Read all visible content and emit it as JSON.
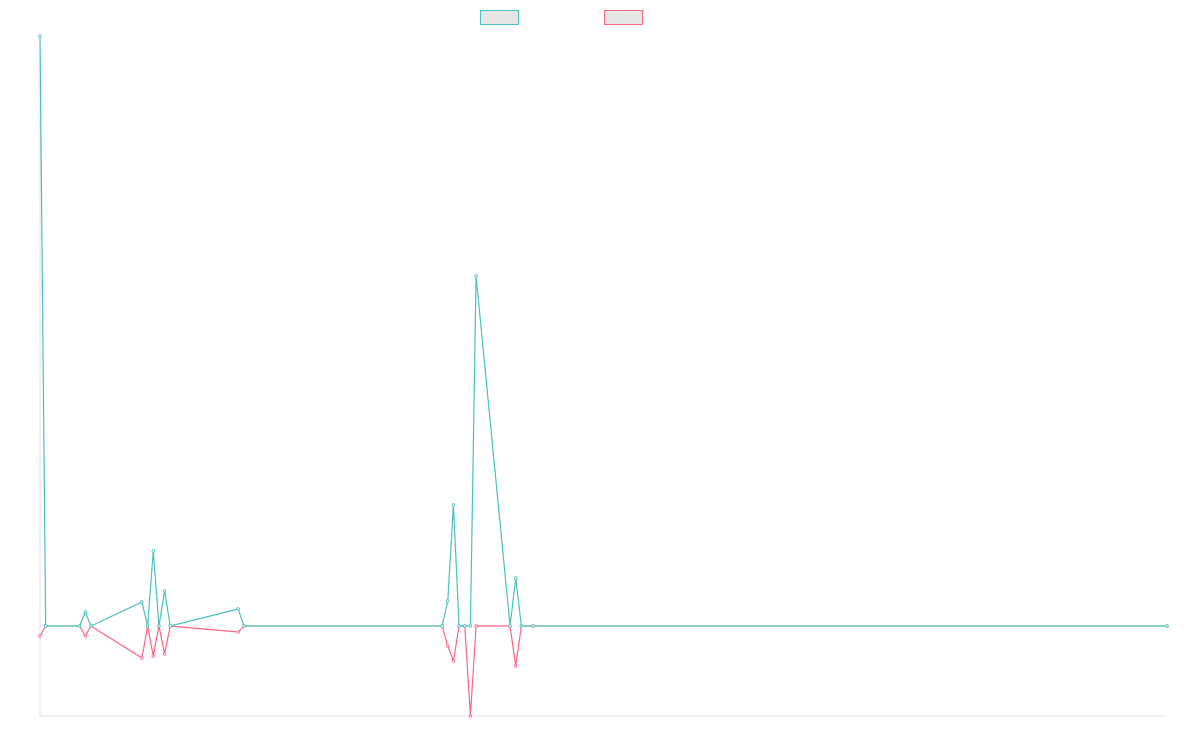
{
  "chart_data": {
    "type": "line",
    "title": "",
    "xlabel": "",
    "ylabel": "",
    "grid": false,
    "legend_position": "top-center",
    "x": [
      0,
      1,
      7,
      8,
      9,
      18,
      19,
      20,
      21,
      22,
      23,
      35,
      36,
      71,
      72,
      73,
      74,
      75,
      76,
      77,
      83,
      84,
      85,
      87,
      199
    ],
    "ylim": [
      -90,
      590
    ],
    "series": [
      {
        "name": "",
        "color": "#4bc0c0",
        "values": [
          590,
          0,
          0,
          14,
          0,
          24,
          0,
          75,
          0,
          35,
          0,
          17,
          0,
          0,
          25,
          121,
          0,
          0,
          0,
          350,
          0,
          48,
          0,
          0,
          0
        ]
      },
      {
        "name": "",
        "color": "#ff6384",
        "values": [
          -10,
          0,
          0,
          -10,
          0,
          -32,
          0,
          -30,
          0,
          -28,
          0,
          -6,
          0,
          0,
          -20,
          -35,
          0,
          0,
          -90,
          0,
          0,
          -40,
          0,
          0,
          0
        ]
      }
    ]
  }
}
